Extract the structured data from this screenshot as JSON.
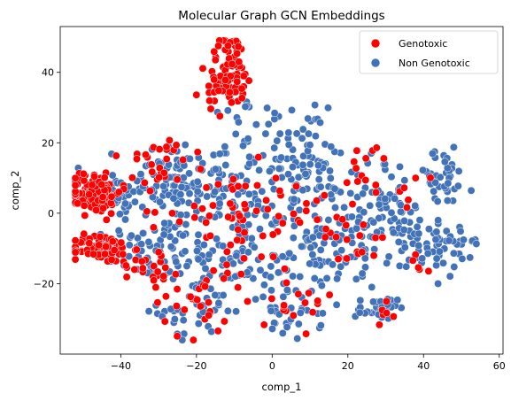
{
  "chart_data": {
    "type": "scatter",
    "title": "Molecular Graph GCN Embeddings",
    "xlabel": "comp_1",
    "ylabel": "comp_2",
    "xlim": [
      -56,
      61
    ],
    "ylim": [
      -40,
      53
    ],
    "xticks": [
      -40,
      -20,
      0,
      20,
      40,
      60
    ],
    "yticks": [
      -20,
      0,
      20,
      40
    ],
    "xtick_labels": [
      "−40",
      "−20",
      "0",
      "20",
      "40",
      "60"
    ],
    "ytick_labels": [
      "−20",
      "0",
      "20",
      "40"
    ],
    "grid": false,
    "legend_position": "top-right",
    "series": [
      {
        "name": "Genotoxic",
        "color": "#ff0000",
        "clusters": [
          {
            "cx": -47,
            "cy": 6,
            "sx": 3.5,
            "sy": 3,
            "n": 120
          },
          {
            "cx": -45,
            "cy": -10,
            "sx": 4,
            "sy": 2,
            "n": 80
          },
          {
            "cx": -11,
            "cy": 42,
            "sx": 3,
            "sy": 5,
            "n": 70
          },
          {
            "cx": -12,
            "cy": 34,
            "sx": 3,
            "sy": 3,
            "n": 25
          },
          {
            "cx": -30,
            "cy": 14,
            "sx": 4,
            "sy": 4,
            "n": 25
          },
          {
            "cx": -32,
            "cy": -14,
            "sx": 4,
            "sy": 3,
            "n": 20
          },
          {
            "cx": -15,
            "cy": 0,
            "sx": 8,
            "sy": 8,
            "n": 40
          },
          {
            "cx": -20,
            "cy": -25,
            "sx": 6,
            "sy": 5,
            "n": 25
          },
          {
            "cx": 2,
            "cy": 0,
            "sx": 6,
            "sy": 6,
            "n": 30
          },
          {
            "cx": 5,
            "cy": -25,
            "sx": 6,
            "sy": 4,
            "n": 20
          },
          {
            "cx": 22,
            "cy": -7,
            "sx": 5,
            "sy": 5,
            "n": 20
          },
          {
            "cx": 25,
            "cy": 16,
            "sx": 3,
            "sy": 3,
            "n": 12
          },
          {
            "cx": 30,
            "cy": -28,
            "sx": 2,
            "sy": 2,
            "n": 6
          },
          {
            "cx": 40,
            "cy": -16,
            "sx": 2,
            "sy": 2,
            "n": 5
          },
          {
            "cx": 36,
            "cy": 6,
            "sx": 3,
            "sy": 3,
            "n": 6
          }
        ]
      },
      {
        "name": "Non Genotoxic",
        "color": "#4272b8",
        "clusters": [
          {
            "cx": -40,
            "cy": 5,
            "sx": 4,
            "sy": 4,
            "n": 30
          },
          {
            "cx": -40,
            "cy": -10,
            "sx": 4,
            "sy": 3,
            "n": 25
          },
          {
            "cx": -27,
            "cy": 10,
            "sx": 6,
            "sy": 6,
            "n": 70
          },
          {
            "cx": -30,
            "cy": -10,
            "sx": 5,
            "sy": 5,
            "n": 40
          },
          {
            "cx": -15,
            "cy": 8,
            "sx": 6,
            "sy": 6,
            "n": 60
          },
          {
            "cx": -18,
            "cy": -12,
            "sx": 6,
            "sy": 6,
            "n": 50
          },
          {
            "cx": -20,
            "cy": -28,
            "sx": 5,
            "sy": 4,
            "n": 35
          },
          {
            "cx": -5,
            "cy": -12,
            "sx": 6,
            "sy": 8,
            "n": 50
          },
          {
            "cx": 0,
            "cy": 5,
            "sx": 8,
            "sy": 8,
            "n": 60
          },
          {
            "cx": 4,
            "cy": 22,
            "sx": 5,
            "sy": 4,
            "n": 30
          },
          {
            "cx": 12,
            "cy": 12,
            "sx": 6,
            "sy": 5,
            "n": 40
          },
          {
            "cx": 12,
            "cy": -12,
            "sx": 6,
            "sy": 6,
            "n": 50
          },
          {
            "cx": 5,
            "cy": -30,
            "sx": 4,
            "sy": 3,
            "n": 25
          },
          {
            "cx": 25,
            "cy": 5,
            "sx": 6,
            "sy": 6,
            "n": 45
          },
          {
            "cx": 25,
            "cy": -10,
            "sx": 6,
            "sy": 5,
            "n": 40
          },
          {
            "cx": 28,
            "cy": -27,
            "sx": 2.5,
            "sy": 1.5,
            "n": 30
          },
          {
            "cx": 37,
            "cy": -8,
            "sx": 5,
            "sy": 4,
            "n": 30
          },
          {
            "cx": 45,
            "cy": 10,
            "sx": 4,
            "sy": 4,
            "n": 40
          },
          {
            "cx": 48,
            "cy": -8,
            "sx": 4,
            "sy": 2.5,
            "n": 30
          },
          {
            "cx": 30,
            "cy": 0,
            "sx": 4,
            "sy": 3,
            "n": 20
          },
          {
            "cx": -8,
            "cy": 30,
            "sx": 3,
            "sy": 3,
            "n": 12
          },
          {
            "cx": 45,
            "cy": -15,
            "sx": 3,
            "sy": 3,
            "n": 8
          }
        ]
      }
    ]
  }
}
